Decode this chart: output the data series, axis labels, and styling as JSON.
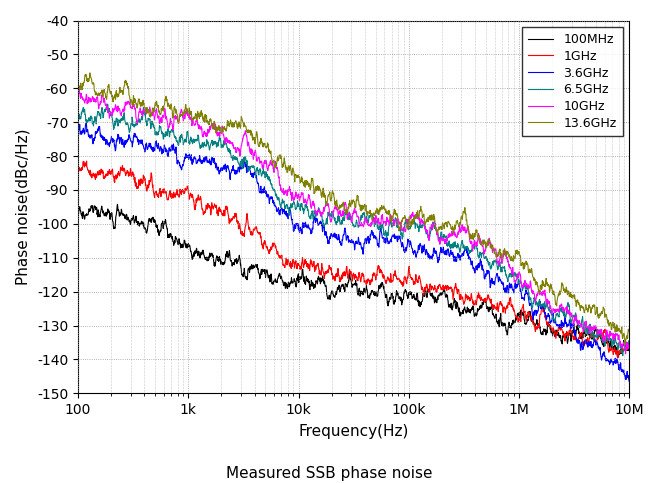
{
  "title": "Measured SSB phase noise",
  "xlabel": "Frequency(Hz)",
  "ylabel": "Phase noise(dBc/Hz)",
  "xmin": 100,
  "xmax": 10000000,
  "ymin": -150,
  "ymax": -40,
  "yticks": [
    -150,
    -140,
    -130,
    -120,
    -110,
    -100,
    -90,
    -80,
    -70,
    -60,
    -50,
    -40
  ],
  "xticks": [
    100,
    1000,
    10000,
    100000,
    1000000,
    10000000
  ],
  "xticklabels": [
    "100",
    "1k",
    "10k",
    "100k",
    "1M",
    "10M"
  ],
  "legend_labels": [
    "100MHz",
    "1GHz",
    "3.6GHz",
    "6.5GHz",
    "10GHz",
    "13.6GHz"
  ],
  "line_colors": [
    "#000000",
    "#ff0000",
    "#0000ff",
    "#008080",
    "#ff00ff",
    "#808000"
  ],
  "background_color": "#ffffff",
  "grid_color": "#999999",
  "curve_data": [
    {
      "label": "100MHz",
      "color": "#000000",
      "knots_log": [
        2.0,
        2.7,
        3.0,
        3.5,
        4.0,
        4.5,
        5.0,
        5.5,
        6.0,
        7.0
      ],
      "knots_y": [
        -97,
        -100,
        -108,
        -112,
        -118,
        -120,
        -122,
        -124,
        -128,
        -137
      ]
    },
    {
      "label": "1GHz",
      "color": "#ff0000",
      "knots_log": [
        2.0,
        2.5,
        3.0,
        3.5,
        4.0,
        4.5,
        5.0,
        5.5,
        6.0,
        7.0
      ],
      "knots_y": [
        -83,
        -88,
        -93,
        -100,
        -112,
        -115,
        -117,
        -120,
        -126,
        -137
      ]
    },
    {
      "label": "3.6GHz",
      "color": "#0000ff",
      "knots_log": [
        2.0,
        2.5,
        3.0,
        3.5,
        4.0,
        4.5,
        5.0,
        5.5,
        6.0,
        7.0
      ],
      "knots_y": [
        -73,
        -76,
        -80,
        -85,
        -100,
        -104,
        -106,
        -110,
        -120,
        -145
      ]
    },
    {
      "label": "6.5GHz",
      "color": "#008080",
      "knots_log": [
        2.0,
        2.5,
        3.0,
        3.5,
        4.0,
        4.5,
        5.0,
        5.5,
        6.0,
        7.0
      ],
      "knots_y": [
        -68,
        -70,
        -75,
        -80,
        -96,
        -100,
        -102,
        -106,
        -118,
        -137
      ]
    },
    {
      "label": "10GHz",
      "color": "#ff00ff",
      "knots_log": [
        2.0,
        2.5,
        3.0,
        3.5,
        4.0,
        4.5,
        5.0,
        5.5,
        6.0,
        7.0
      ],
      "knots_y": [
        -63,
        -66,
        -70,
        -76,
        -93,
        -98,
        -100,
        -104,
        -116,
        -137
      ]
    },
    {
      "label": "13.6GHz",
      "color": "#808000",
      "knots_log": [
        2.0,
        2.5,
        3.0,
        3.5,
        4.0,
        4.5,
        5.0,
        5.5,
        6.0,
        7.0
      ],
      "knots_y": [
        -59,
        -63,
        -68,
        -73,
        -88,
        -95,
        -98,
        -101,
        -112,
        -133
      ]
    }
  ]
}
